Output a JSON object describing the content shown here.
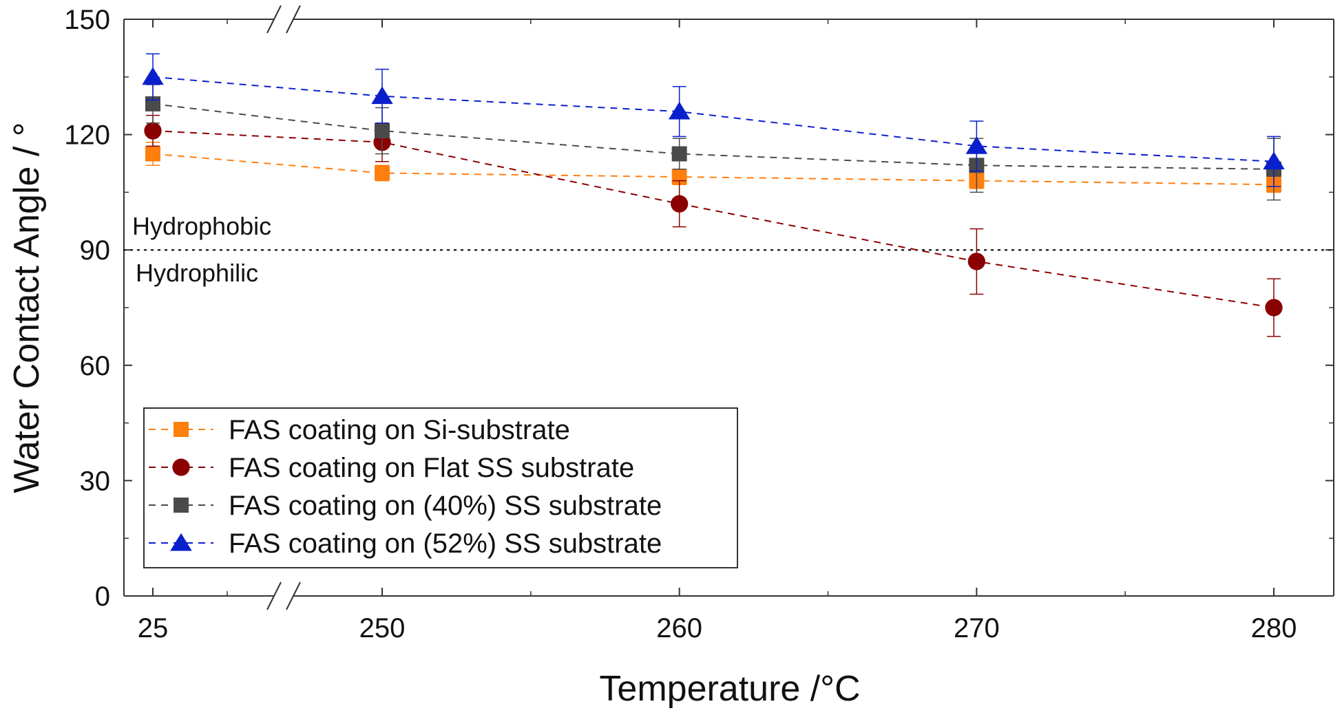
{
  "chart_data": {
    "type": "scatter",
    "xlabel": "Temperature /°C",
    "ylabel": "Water Contact Angle / °",
    "categories": [
      "25",
      "250",
      "260",
      "270",
      "280"
    ],
    "x": [
      25,
      250,
      260,
      270,
      280
    ],
    "x_axis_break": "between 25 and 250",
    "ylim": [
      0,
      150
    ],
    "yticks": [
      "0",
      "30",
      "60",
      "90",
      "120",
      "150"
    ],
    "grid": false,
    "legend_placement": "bottom-left",
    "threshold": {
      "y": 90,
      "above_label": "Hydrophobic",
      "below_label": "Hydrophilic"
    },
    "series": [
      {
        "name": "FAS coating on Si-substrate",
        "marker": "square",
        "color": "#FF7F0E",
        "values": [
          115,
          110,
          109,
          108,
          107
        ],
        "errors": [
          3,
          2,
          2,
          2,
          2
        ]
      },
      {
        "name": "FAS coating on Flat SS substrate",
        "marker": "circle",
        "color": "#8B0000",
        "values": [
          121,
          118,
          102,
          87,
          75
        ],
        "errors": [
          4,
          5,
          6,
          8.5,
          7.5
        ]
      },
      {
        "name": "FAS coating on (40%) SS substrate",
        "marker": "square",
        "color": "#4A4A4A",
        "values": [
          128,
          121,
          115,
          112,
          111
        ],
        "errors": [
          5,
          6,
          4,
          7,
          8
        ]
      },
      {
        "name": "FAS coating on (52%) SS substrate",
        "marker": "triangle",
        "color": "#0A1FCC",
        "values": [
          135,
          130,
          126,
          117,
          113
        ],
        "errors": [
          6,
          7,
          6.5,
          6.5,
          6.5
        ]
      }
    ]
  }
}
